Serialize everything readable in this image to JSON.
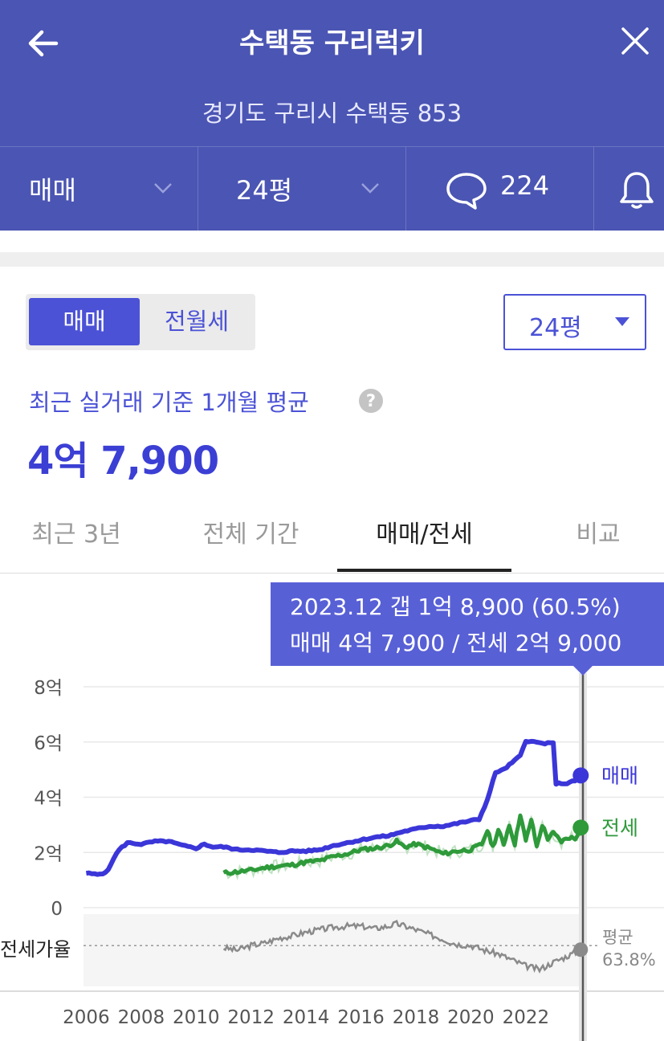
{
  "header": {
    "title": "수택동 구리럭키",
    "address": "경기도 구리시 수택동 853",
    "filters": {
      "trade_type": "매매",
      "size": "24평",
      "comment_count": "224"
    }
  },
  "controls": {
    "segment": [
      "매매",
      "전월세"
    ],
    "size_select": "24평",
    "avg_label": "최근 실거래 기준 1개월 평균",
    "help_icon": "?",
    "avg_value": "4억 7,900"
  },
  "tabs": [
    {
      "label": "최근 3년",
      "active": false
    },
    {
      "label": "전체 기간",
      "active": false
    },
    {
      "label": "매매/전세",
      "active": true
    },
    {
      "label": "비교",
      "active": false
    }
  ],
  "tooltip": {
    "line1": "2023.12  갭 1억 8,900 (60.5%)",
    "line2": "매매 4억 7,900 / 전세 2억 9,000"
  },
  "colors": {
    "header_bg": "#4b55b3",
    "accent": "#4b52d6",
    "sale": "#3b36d8",
    "jeonse": "#2e9a3a",
    "ratio": "#8a8a8a"
  },
  "chart_data": {
    "type": "line",
    "x_unit": "year",
    "y_unit": "억",
    "xlim": [
      2005.9,
      2024.05
    ],
    "ylim": [
      0,
      8
    ],
    "ytick_values": [
      0,
      2,
      4,
      6,
      8
    ],
    "ytick_labels": [
      "0",
      "2억",
      "4억",
      "6억",
      "8억"
    ],
    "xticks": [
      2006,
      2008,
      2010,
      2012,
      2014,
      2016,
      2018,
      2020,
      2022
    ],
    "xtick_labels": [
      "2006",
      "2008",
      "2010",
      "2012",
      "2014",
      "2016",
      "2018",
      "2020",
      "2022"
    ],
    "grid": true,
    "series": [
      {
        "name": "매매",
        "points": [
          [
            2006.0,
            1.25
          ],
          [
            2006.4,
            1.2
          ],
          [
            2006.6,
            1.25
          ],
          [
            2006.8,
            1.35
          ],
          [
            2007.0,
            1.8
          ],
          [
            2007.2,
            2.1
          ],
          [
            2007.5,
            2.35
          ],
          [
            2008.0,
            2.3
          ],
          [
            2008.5,
            2.4
          ],
          [
            2009.0,
            2.4
          ],
          [
            2009.5,
            2.25
          ],
          [
            2010.0,
            2.15
          ],
          [
            2010.3,
            2.3
          ],
          [
            2010.6,
            2.2
          ],
          [
            2011.0,
            2.2
          ],
          [
            2011.5,
            2.1
          ],
          [
            2012.0,
            2.1
          ],
          [
            2012.5,
            2.05
          ],
          [
            2013.0,
            2.0
          ],
          [
            2013.5,
            2.05
          ],
          [
            2014.0,
            2.05
          ],
          [
            2014.5,
            2.1
          ],
          [
            2015.0,
            2.25
          ],
          [
            2015.5,
            2.35
          ],
          [
            2016.0,
            2.45
          ],
          [
            2016.5,
            2.55
          ],
          [
            2017.0,
            2.6
          ],
          [
            2017.5,
            2.75
          ],
          [
            2018.0,
            2.85
          ],
          [
            2018.5,
            2.95
          ],
          [
            2019.0,
            2.95
          ],
          [
            2019.5,
            3.05
          ],
          [
            2020.0,
            3.15
          ],
          [
            2020.3,
            3.2
          ],
          [
            2020.6,
            3.9
          ],
          [
            2020.9,
            4.9
          ],
          [
            2021.2,
            5.0
          ],
          [
            2021.5,
            5.25
          ],
          [
            2021.8,
            5.5
          ],
          [
            2022.0,
            6.05
          ],
          [
            2022.3,
            6.0
          ],
          [
            2022.6,
            5.95
          ],
          [
            2023.0,
            5.95
          ],
          [
            2023.1,
            4.5
          ],
          [
            2023.5,
            4.5
          ],
          [
            2023.8,
            4.6
          ],
          [
            2024.0,
            4.79
          ]
        ]
      },
      {
        "name": "전세",
        "points": [
          [
            2011.0,
            1.25
          ],
          [
            2011.5,
            1.3
          ],
          [
            2012.0,
            1.35
          ],
          [
            2012.5,
            1.45
          ],
          [
            2013.0,
            1.5
          ],
          [
            2013.5,
            1.55
          ],
          [
            2014.0,
            1.65
          ],
          [
            2014.5,
            1.7
          ],
          [
            2015.0,
            1.85
          ],
          [
            2015.5,
            1.95
          ],
          [
            2016.0,
            2.1
          ],
          [
            2016.5,
            2.15
          ],
          [
            2017.0,
            2.25
          ],
          [
            2017.3,
            2.4
          ],
          [
            2017.6,
            2.2
          ],
          [
            2018.0,
            2.3
          ],
          [
            2018.5,
            2.15
          ],
          [
            2019.0,
            1.95
          ],
          [
            2019.5,
            2.05
          ],
          [
            2020.0,
            2.1
          ],
          [
            2020.4,
            2.3
          ],
          [
            2020.6,
            2.8
          ],
          [
            2020.8,
            2.2
          ],
          [
            2021.0,
            2.8
          ],
          [
            2021.2,
            2.3
          ],
          [
            2021.4,
            3.0
          ],
          [
            2021.6,
            2.3
          ],
          [
            2021.8,
            3.4
          ],
          [
            2022.0,
            2.4
          ],
          [
            2022.2,
            3.2
          ],
          [
            2022.4,
            2.2
          ],
          [
            2022.6,
            3.0
          ],
          [
            2022.8,
            2.5
          ],
          [
            2023.0,
            2.7
          ],
          [
            2023.3,
            2.4
          ],
          [
            2023.6,
            2.55
          ],
          [
            2023.8,
            2.5
          ],
          [
            2024.0,
            2.9
          ]
        ]
      },
      {
        "name": "전세가율",
        "points": [
          [
            2011.0,
            0.62
          ],
          [
            2011.5,
            0.6
          ],
          [
            2012.0,
            0.64
          ],
          [
            2012.5,
            0.66
          ],
          [
            2013.0,
            0.7
          ],
          [
            2013.5,
            0.72
          ],
          [
            2014.0,
            0.75
          ],
          [
            2014.5,
            0.77
          ],
          [
            2015.0,
            0.79
          ],
          [
            2015.5,
            0.8
          ],
          [
            2016.0,
            0.8
          ],
          [
            2016.5,
            0.78
          ],
          [
            2017.0,
            0.8
          ],
          [
            2017.3,
            0.82
          ],
          [
            2017.6,
            0.8
          ],
          [
            2018.0,
            0.77
          ],
          [
            2018.5,
            0.73
          ],
          [
            2019.0,
            0.69
          ],
          [
            2019.5,
            0.65
          ],
          [
            2020.0,
            0.64
          ],
          [
            2020.5,
            0.6
          ],
          [
            2021.0,
            0.57
          ],
          [
            2021.5,
            0.52
          ],
          [
            2022.0,
            0.47
          ],
          [
            2022.5,
            0.44
          ],
          [
            2023.0,
            0.5
          ],
          [
            2023.5,
            0.55
          ],
          [
            2024.0,
            0.605
          ]
        ]
      }
    ],
    "series_labels": {
      "sale": "매매",
      "jeonse": "전세"
    },
    "ratio_label": "전세가율",
    "ratio_avg": {
      "label": "평균",
      "value": "63.8%",
      "fraction": 0.638
    },
    "selected": {
      "x": 2024.0,
      "label": "2023.12"
    }
  }
}
